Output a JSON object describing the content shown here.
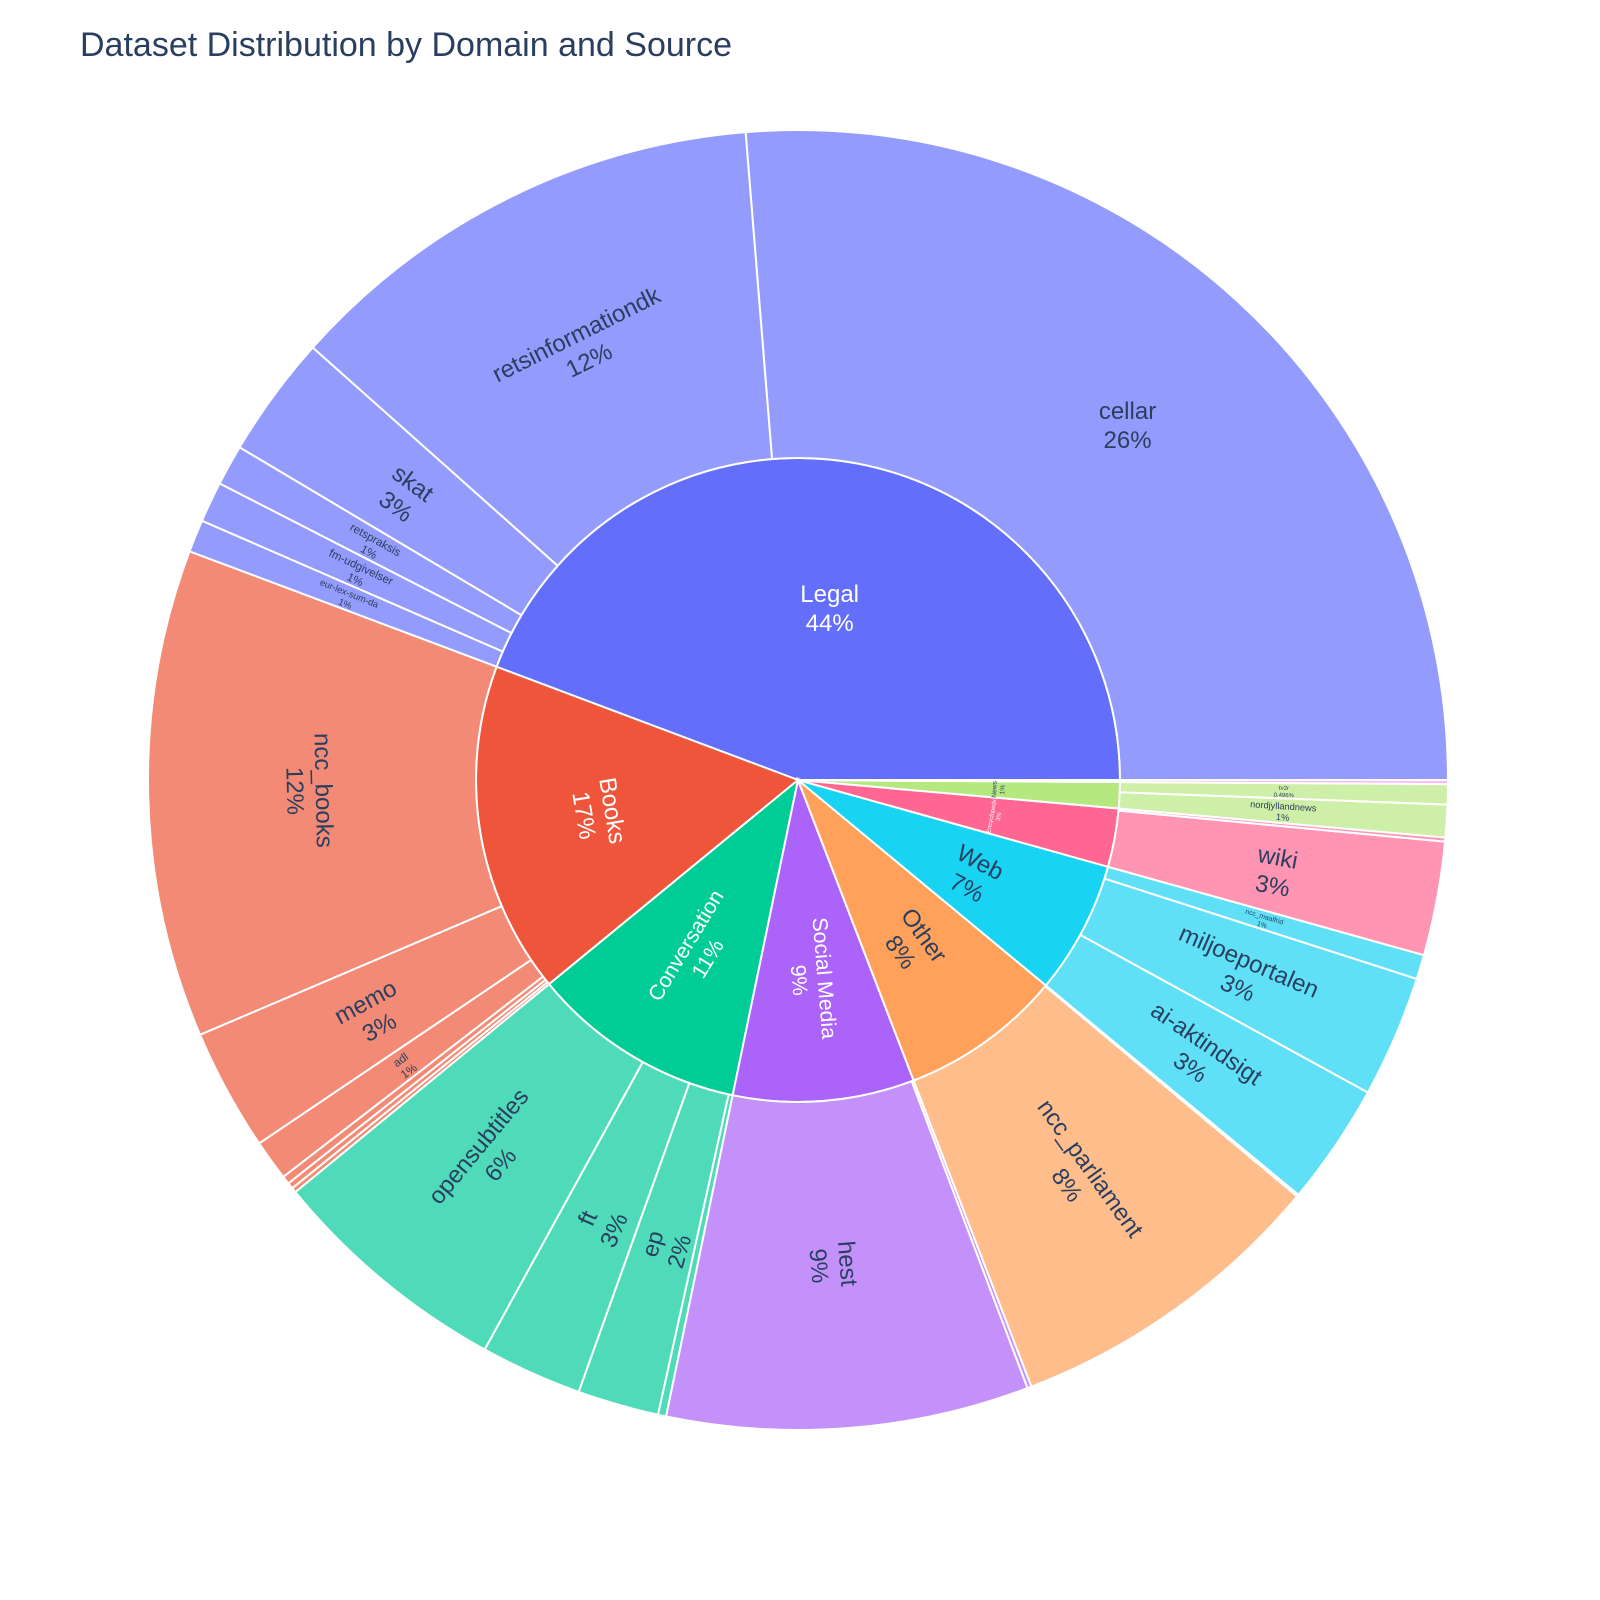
{
  "chart_data": {
    "type": "sunburst",
    "title": "Dataset Distribution by Domain and Source",
    "domains": [
      {
        "name": "Legal",
        "label": "Legal",
        "percent_label": "44%",
        "color": "#636efa",
        "child_color": "#939bfc",
        "children": [
          {
            "name": "cellar",
            "value": 26.0,
            "percent_label": "26%",
            "show": true
          },
          {
            "name": "retsinformationdk",
            "value": 12.0,
            "percent_label": "12%",
            "show": true
          },
          {
            "name": "skat",
            "value": 3.0,
            "percent_label": "3%",
            "show": true
          },
          {
            "name": "retspraksis",
            "value": 1.0,
            "percent_label": "1%",
            "show": true
          },
          {
            "name": "fm-udgivelser",
            "value": 1.0,
            "percent_label": "1%",
            "show": true
          },
          {
            "name": "eur-lex-sum-da",
            "value": 0.8,
            "percent_label": "1%",
            "show": true
          }
        ]
      },
      {
        "name": "Books",
        "label": "Books",
        "percent_label": "17%",
        "color": "#ef553b",
        "child_color": "#f38a75",
        "children": [
          {
            "name": "ncc_books",
            "value": 12.0,
            "percent_label": "12%",
            "show": true
          },
          {
            "name": "memo",
            "value": 3.0,
            "percent_label": "3%",
            "show": true
          },
          {
            "name": "adl",
            "value": 1.0,
            "percent_label": "1%",
            "show": true
          },
          {
            "name": "",
            "value": 0.2,
            "percent_label": "",
            "show": false
          },
          {
            "name": "",
            "value": 0.15,
            "percent_label": "",
            "show": false
          },
          {
            "name": "",
            "value": 0.12,
            "percent_label": "",
            "show": false
          }
        ]
      },
      {
        "name": "Conversation",
        "label": "Conversation",
        "percent_label": "11%",
        "color": "#00cc96",
        "child_color": "#4fdab9",
        "children": [
          {
            "name": "opensubtitles",
            "value": 6.0,
            "percent_label": "6%",
            "show": true
          },
          {
            "name": "ft",
            "value": 2.5,
            "percent_label": "3%",
            "show": true
          },
          {
            "name": "ep",
            "value": 2.0,
            "percent_label": "2%",
            "show": true
          },
          {
            "name": "",
            "value": 0.2,
            "percent_label": "",
            "show": false
          }
        ]
      },
      {
        "name": "Social Media",
        "label": "Social Media",
        "percent_label": "9%",
        "color": "#ab63fa",
        "child_color": "#c491fb",
        "children": [
          {
            "name": "hest",
            "value": 8.9,
            "percent_label": "9%",
            "show": true
          },
          {
            "name": "",
            "value": 0.1,
            "percent_label": "",
            "show": false
          }
        ]
      },
      {
        "name": "Other",
        "label": "Other",
        "percent_label": "8%",
        "color": "#ffa15a",
        "child_color": "#ffbd8b",
        "children": [
          {
            "name": "ncc_parliament",
            "value": 8.0,
            "percent_label": "8%",
            "show": true
          },
          {
            "name": "",
            "value": 0.05,
            "percent_label": "",
            "show": false
          }
        ]
      },
      {
        "name": "Web",
        "label": "Web",
        "percent_label": "7%",
        "color": "#19d3f3",
        "child_color": "#5fe0f7",
        "children": [
          {
            "name": "ai-aktindsigt",
            "value": 3.0,
            "percent_label": "3%",
            "show": true
          },
          {
            "name": "miljoeportalen",
            "value": 3.0,
            "percent_label": "3%",
            "show": true
          },
          {
            "name": "ncc_maalfrid",
            "value": 0.6,
            "percent_label": "1%",
            "show": true
          }
        ]
      },
      {
        "name": "Encyclopedic",
        "label": "Encyclopedic",
        "percent_label": "3%",
        "color": "#ff6692",
        "child_color": "#ff94b3",
        "children": [
          {
            "name": "wiki",
            "value": 2.8,
            "percent_label": "3%",
            "show": true
          },
          {
            "name": "",
            "value": 0.1,
            "percent_label": "",
            "show": false
          }
        ]
      },
      {
        "name": "News",
        "label": "News",
        "percent_label": "1%",
        "color": "#b6e880",
        "child_color": "#cdefa8",
        "children": [
          {
            "name": "nordjyllandnews",
            "value": 0.8,
            "percent_label": "1%",
            "show": true
          },
          {
            "name": "tv2r",
            "value": 0.496,
            "percent_label": "0.496%",
            "show": true
          }
        ]
      },
      {
        "name": "",
        "label": "",
        "percent_label": "",
        "color": "#ff97ff",
        "child_color": "#ffb8ff",
        "children": [
          {
            "name": "",
            "value": 0.1,
            "percent_label": "",
            "show": false
          }
        ]
      }
    ]
  }
}
